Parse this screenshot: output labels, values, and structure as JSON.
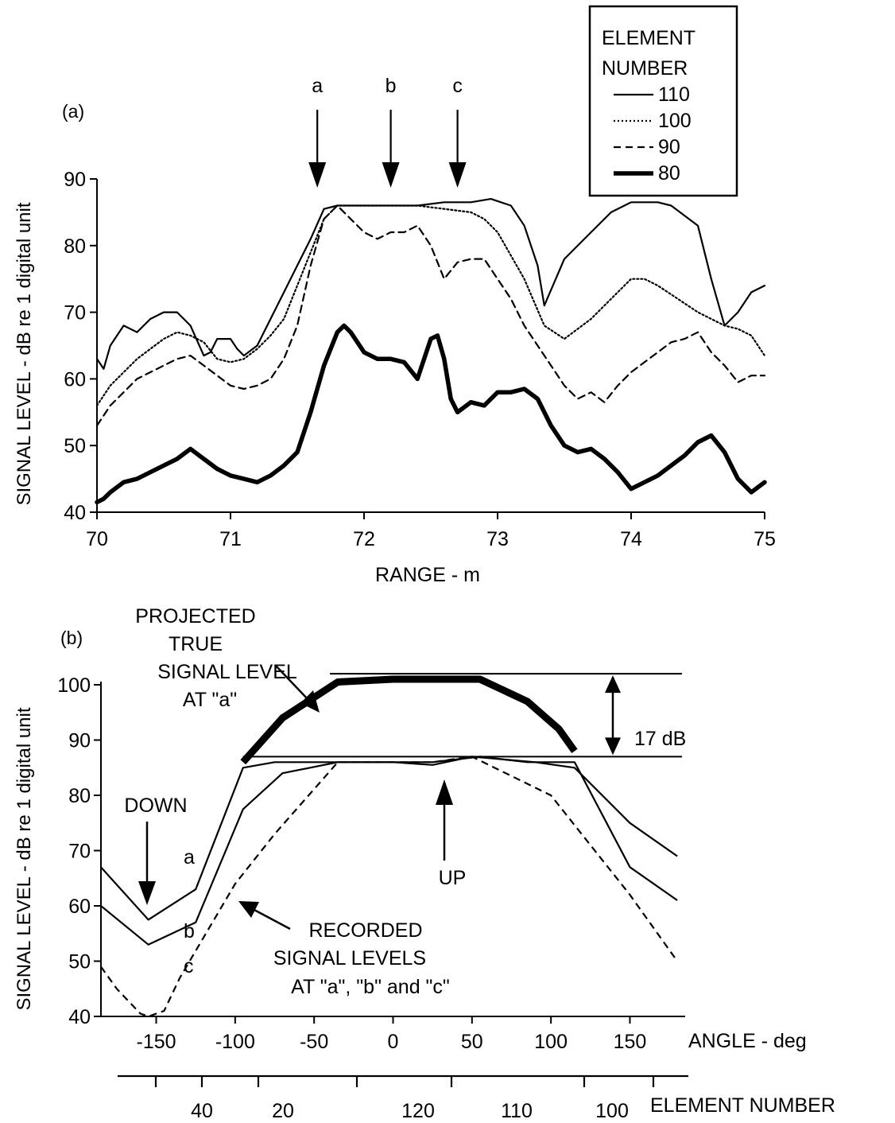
{
  "chart_data": [
    {
      "type": "line",
      "panel_label": "(a)",
      "xlabel": "RANGE  -  m",
      "ylabel": "SIGNAL LEVEL  -  dB re 1 digital unit",
      "xlim": [
        70,
        75
      ],
      "ylim": [
        40,
        90
      ],
      "x_ticks": [
        70,
        71,
        72,
        73,
        74,
        75
      ],
      "y_ticks": [
        40,
        50,
        60,
        70,
        80,
        90
      ],
      "legend_title": [
        "ELEMENT",
        "NUMBER"
      ],
      "legend_position": "top-right",
      "arrow_labels": [
        {
          "label": "a",
          "x": 71.65
        },
        {
          "label": "b",
          "x": 72.2
        },
        {
          "label": "c",
          "x": 72.7
        }
      ],
      "series": [
        {
          "name": "110",
          "style": "solid-thin",
          "x": [
            70,
            70.05,
            70.1,
            70.2,
            70.3,
            70.4,
            70.5,
            70.6,
            70.7,
            70.8,
            70.85,
            70.9,
            71,
            71.05,
            71.1,
            71.2,
            71.3,
            71.4,
            71.5,
            71.6,
            71.7,
            71.8,
            71.9,
            72,
            72.2,
            72.4,
            72.6,
            72.8,
            72.95,
            73.1,
            73.2,
            73.3,
            73.35,
            73.5,
            73.7,
            73.85,
            74,
            74.1,
            74.2,
            74.3,
            74.5,
            74.6,
            74.7,
            74.8,
            74.9,
            75
          ],
          "y": [
            63,
            61.5,
            65,
            68,
            67,
            69,
            70,
            70,
            68,
            63.5,
            64,
            66,
            66,
            64.5,
            63.5,
            65,
            69,
            73,
            77,
            81,
            85.5,
            86,
            86,
            86,
            86,
            86,
            86.5,
            86.5,
            87,
            86,
            83,
            77,
            71,
            78,
            82,
            85,
            86.5,
            86.5,
            86.5,
            86,
            83,
            75,
            68,
            70,
            73,
            74
          ]
        },
        {
          "name": "100",
          "style": "dotted",
          "x": [
            70,
            70.1,
            70.2,
            70.3,
            70.4,
            70.5,
            70.6,
            70.7,
            70.8,
            70.9,
            71,
            71.1,
            71.2,
            71.3,
            71.4,
            71.5,
            71.6,
            71.7,
            71.8,
            72,
            72.2,
            72.4,
            72.6,
            72.8,
            72.9,
            73,
            73.2,
            73.35,
            73.5,
            73.7,
            73.85,
            74,
            74.1,
            74.2,
            74.35,
            74.5,
            74.6,
            74.7,
            74.8,
            74.9,
            75
          ],
          "y": [
            56,
            59,
            61,
            63,
            64.5,
            66,
            67,
            66.5,
            65.5,
            63,
            62.5,
            63,
            64.5,
            66.5,
            69,
            74,
            79,
            84,
            86,
            86,
            86,
            86,
            85.5,
            85,
            84,
            82,
            75,
            68,
            66,
            69,
            72,
            75,
            75,
            74,
            72,
            70,
            69,
            68,
            67.5,
            66.5,
            63.5
          ]
        },
        {
          "name": "90",
          "style": "dashed",
          "x": [
            70,
            70.1,
            70.2,
            70.3,
            70.4,
            70.5,
            70.6,
            70.7,
            70.8,
            70.9,
            71,
            71.1,
            71.2,
            71.3,
            71.4,
            71.5,
            71.6,
            71.7,
            71.8,
            71.9,
            72,
            72.1,
            72.2,
            72.3,
            72.4,
            72.5,
            72.6,
            72.7,
            72.8,
            72.9,
            73,
            73.1,
            73.2,
            73.3,
            73.4,
            73.5,
            73.6,
            73.7,
            73.8,
            73.9,
            74,
            74.1,
            74.2,
            74.3,
            74.4,
            74.5,
            74.6,
            74.7,
            74.8,
            74.9,
            75
          ],
          "y": [
            53,
            56,
            58,
            60,
            61,
            62,
            63,
            63.5,
            62,
            60.5,
            59,
            58.5,
            59,
            60,
            63,
            68,
            77,
            84,
            86,
            84,
            82,
            81,
            82,
            82,
            83,
            80,
            75,
            77.5,
            78,
            78,
            75,
            72,
            68,
            65,
            62,
            59,
            57,
            58,
            56.5,
            59,
            61,
            62.5,
            64,
            65.5,
            66,
            67,
            64,
            62,
            59.5,
            60.5,
            60.5
          ]
        },
        {
          "name": "80",
          "style": "solid-thick",
          "x": [
            70,
            70.05,
            70.1,
            70.2,
            70.3,
            70.4,
            70.5,
            70.6,
            70.7,
            70.8,
            70.9,
            71,
            71.1,
            71.2,
            71.3,
            71.4,
            71.5,
            71.6,
            71.7,
            71.8,
            71.85,
            71.9,
            72,
            72.1,
            72.2,
            72.3,
            72.4,
            72.5,
            72.55,
            72.6,
            72.65,
            72.7,
            72.8,
            72.9,
            73,
            73.1,
            73.2,
            73.3,
            73.4,
            73.5,
            73.6,
            73.7,
            73.8,
            73.9,
            74,
            74.1,
            74.2,
            74.3,
            74.4,
            74.5,
            74.6,
            74.7,
            74.8,
            74.9,
            75
          ],
          "y": [
            41.5,
            42,
            43,
            44.5,
            45,
            46,
            47,
            48,
            49.5,
            48,
            46.5,
            45.5,
            45,
            44.5,
            45.5,
            47,
            49,
            55,
            62,
            67,
            68,
            67,
            64,
            63,
            63,
            62.5,
            60,
            66,
            66.5,
            63,
            57,
            55,
            56.5,
            56,
            58,
            58,
            58.5,
            57,
            53,
            50,
            49,
            49.5,
            48,
            46,
            43.5,
            44.5,
            45.5,
            47,
            48.5,
            50.5,
            51.5,
            49,
            45,
            43,
            44.5
          ]
        }
      ]
    },
    {
      "type": "line",
      "panel_label": "(b)",
      "xlabel": "ANGLE - deg",
      "ylabel": "SIGNAL LEVEL  -  dB re 1 digital unit",
      "xlim": [
        -185,
        185
      ],
      "ylim": [
        40,
        100
      ],
      "x_ticks": [
        -150,
        -100,
        -50,
        0,
        50,
        100,
        150
      ],
      "y_ticks": [
        40,
        50,
        60,
        70,
        80,
        90,
        100
      ],
      "secondary_xlabel": "ELEMENT NUMBER",
      "secondary_x_ticks": [
        "40",
        "20",
        "120",
        "110",
        "100"
      ],
      "annotations": {
        "projected": [
          "PROJECTED",
          "TRUE",
          "SIGNAL LEVEL",
          "AT \"a\""
        ],
        "recorded": [
          "RECORDED",
          "SIGNAL LEVELS",
          "AT \"a\", \"b\" and \"c\""
        ],
        "down": "DOWN",
        "up": "UP",
        "gap": "17 dB",
        "curve_labels": [
          "a",
          "b",
          "c"
        ]
      },
      "series": [
        {
          "name": "PROJECTED TRUE SIGNAL LEVEL AT \"a\"",
          "style": "solid-heavy",
          "x": [
            -95,
            -70,
            -35,
            0,
            55,
            85,
            105,
            115
          ],
          "y": [
            86,
            94,
            100.5,
            101,
            101,
            97,
            92,
            88
          ]
        },
        {
          "name": "a",
          "style": "solid-thin",
          "x": [
            -185,
            -155,
            -125,
            -95,
            -75,
            -40,
            0,
            25,
            50,
            90,
            115,
            150,
            180
          ],
          "y": [
            67,
            57.5,
            63,
            85,
            86,
            86,
            86,
            85.5,
            87,
            86,
            85,
            75,
            69
          ]
        },
        {
          "name": "b",
          "style": "solid-thin",
          "x": [
            -185,
            -155,
            -125,
            -95,
            -70,
            -35,
            0,
            25,
            55,
            85,
            115,
            150,
            180
          ],
          "y": [
            60,
            53,
            57,
            77.5,
            84,
            86,
            86,
            86,
            87,
            86,
            86,
            67,
            61
          ]
        },
        {
          "name": "c",
          "style": "dashed",
          "x": [
            -185,
            -175,
            -160,
            -155,
            -145,
            -135,
            -100,
            -75,
            -35,
            0,
            25,
            50,
            100,
            150,
            180
          ],
          "y": [
            49,
            45,
            40.5,
            40,
            41,
            47,
            64,
            73,
            86,
            86,
            86,
            87,
            80,
            62,
            50
          ]
        }
      ]
    }
  ]
}
